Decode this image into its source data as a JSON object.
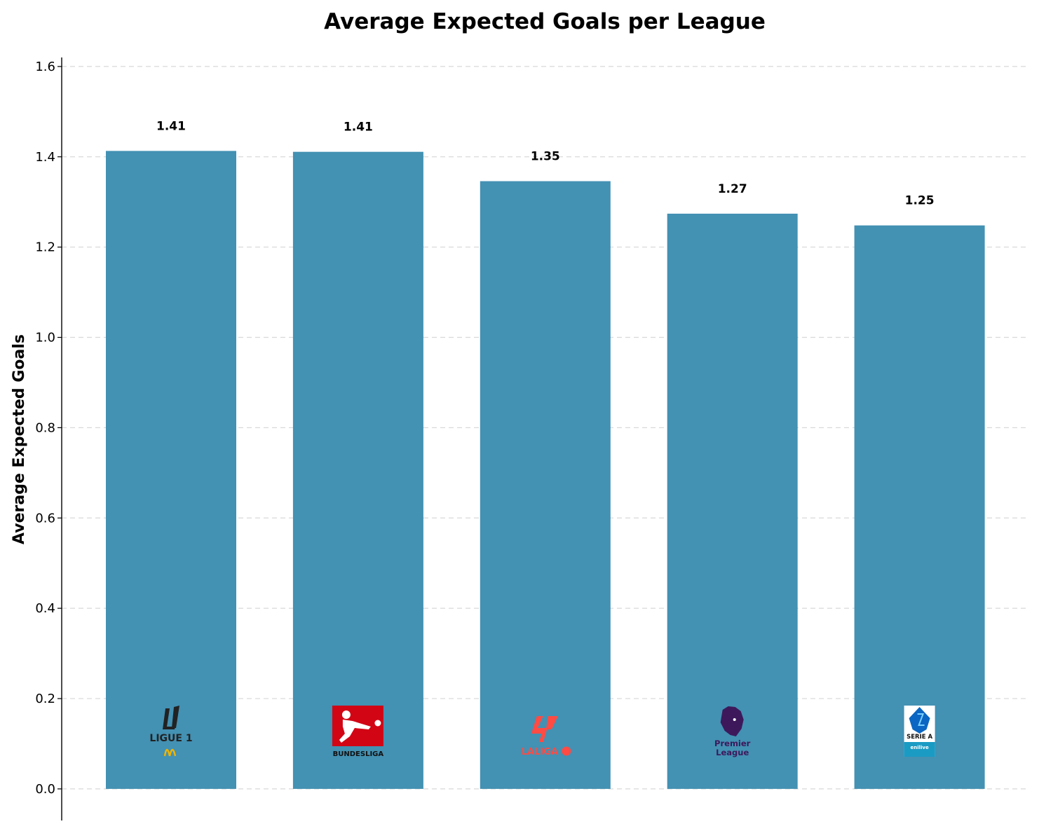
{
  "chart_data": {
    "type": "bar",
    "title": "Average Expected Goals per League",
    "xlabel": "",
    "ylabel": "Average Expected Goals",
    "ylim": [
      -0.07,
      1.62
    ],
    "yticks": [
      "0.0",
      "0.2",
      "0.4",
      "0.6",
      "0.8",
      "1.0",
      "1.2",
      "1.4",
      "1.6"
    ],
    "grid": "y dashed",
    "bar_color": "#4391b3",
    "categories": [
      "Ligue 1",
      "Bundesliga",
      "LaLiga",
      "Premier League",
      "Serie A"
    ],
    "values": [
      1.413,
      1.411,
      1.346,
      1.274,
      1.248
    ],
    "value_labels": [
      "1.41",
      "1.41",
      "1.35",
      "1.27",
      "1.25"
    ],
    "logos": [
      {
        "icon": "ligue1-logo",
        "text": "LIGUE 1",
        "color": "#222222",
        "accent": "#f0b400"
      },
      {
        "icon": "bundesliga-logo",
        "text": "BUNDESLIGA",
        "color": "#d20515"
      },
      {
        "icon": "laliga-logo",
        "text": "LALIGA",
        "color": "#ff4b44"
      },
      {
        "icon": "premier-league-logo",
        "text_lines": [
          "Premier",
          "League"
        ],
        "color": "#3d195b"
      },
      {
        "icon": "serie-a-logo",
        "text": "SERIE A",
        "sub": "enilive",
        "color": "#0a66c2",
        "accent": "#1a9bc4"
      }
    ]
  }
}
